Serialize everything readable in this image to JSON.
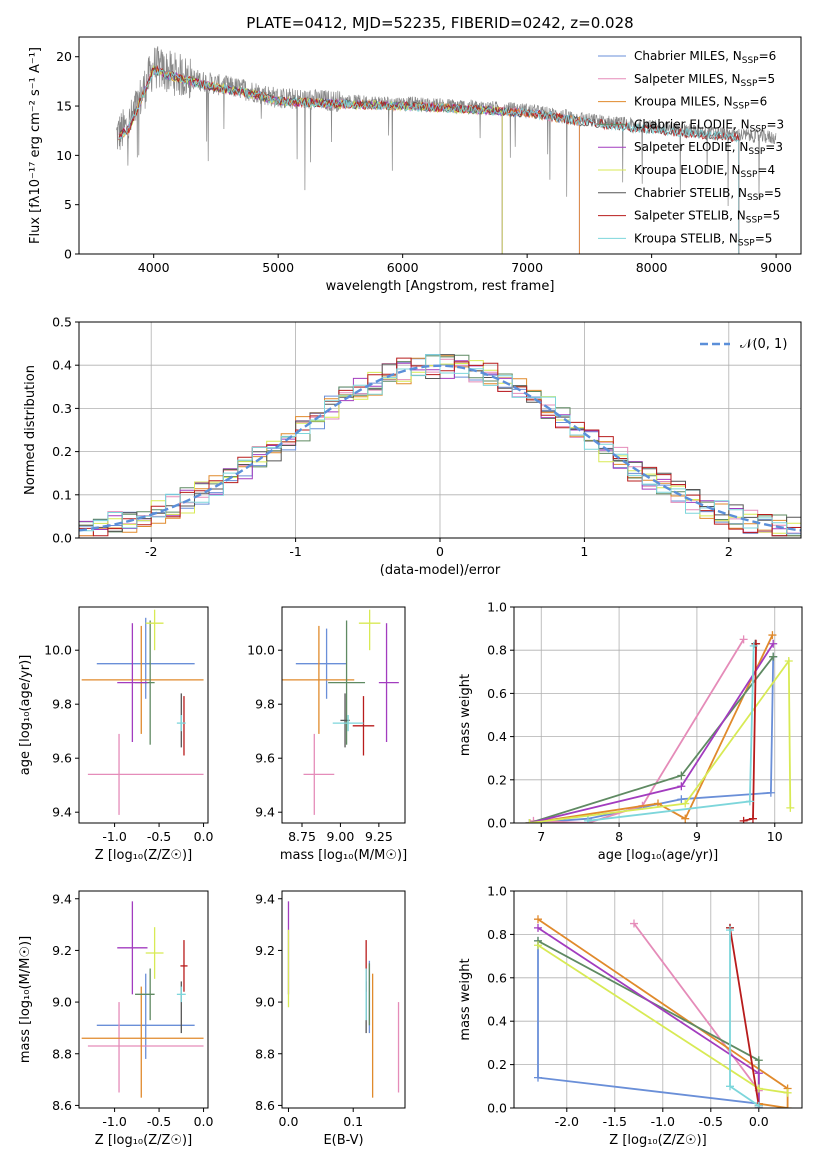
{
  "figure": {
    "title": "PLATE=0412, MJD=52235, FIBERID=0242, z=0.028"
  },
  "chart_data": [
    {
      "type": "line",
      "id": "spectrum",
      "title": "PLATE=0412, MJD=52235, FIBERID=0242, z=0.028",
      "xlabel": "wavelength [Angstrom, rest frame]",
      "ylabel": "Flux [fλ10⁻¹⁷ erg cm⁻² s⁻¹ A⁻¹]",
      "xlim": [
        3400,
        9200
      ],
      "ylim": [
        0,
        22
      ],
      "xticks": [
        4000,
        5000,
        6000,
        7000,
        8000,
        9000
      ],
      "yticks": [
        0,
        5,
        10,
        15,
        20
      ],
      "legend_position": "top-right",
      "data_trend": {
        "x": [
          3700,
          3800,
          3900,
          4000,
          4100,
          4300,
          4500,
          4800,
          5000,
          5500,
          6000,
          6500,
          7000,
          7500,
          8000,
          8500,
          9000
        ],
        "y": [
          12,
          13,
          16,
          19,
          18.5,
          17.8,
          17.2,
          16.5,
          15.8,
          15.5,
          15.3,
          15.0,
          14.6,
          13.6,
          12.9,
          12.3,
          11.8
        ]
      },
      "series": [
        {
          "name": "Chabrier MILES, N_SSP=6",
          "label_main": "Chabrier MILES, N",
          "label_sub": "SSP",
          "label_tail": "=6",
          "color": "#6a8fd8",
          "xmax": 7420
        },
        {
          "name": "Salpeter MILES, N_SSP=5",
          "label_main": "Salpeter MILES, N",
          "label_sub": "SSP",
          "label_tail": "=5",
          "color": "#e58cb9",
          "xmax": 7420
        },
        {
          "name": "Kroupa MILES, N_SSP=6",
          "label_main": "Kroupa MILES, N",
          "label_sub": "SSP",
          "label_tail": "=6",
          "color": "#e08a2c",
          "xmax": 7420
        },
        {
          "name": "Chabrier ELODIE, N_SSP=3",
          "label_main": "Chabrier ELODIE, N",
          "label_sub": "SSP",
          "label_tail": "=3",
          "color": "#5f8a62",
          "xmax": 6800
        },
        {
          "name": "Salpeter ELODIE, N_SSP=3",
          "label_main": "Salpeter ELODIE, N",
          "label_sub": "SSP",
          "label_tail": "=3",
          "color": "#a23cbf",
          "xmax": 6800
        },
        {
          "name": "Kroupa ELODIE, N_SSP=4",
          "label_main": "Kroupa ELODIE, N",
          "label_sub": "SSP",
          "label_tail": "=4",
          "color": "#d8ea55",
          "xmax": 6800
        },
        {
          "name": "Chabrier STELIB, N_SSP=5",
          "label_main": "Chabrier STELIB, N",
          "label_sub": "SSP",
          "label_tail": "=5",
          "color": "#555555",
          "xmax": 8700
        },
        {
          "name": "Salpeter STELIB, N_SSP=5",
          "label_main": "Salpeter STELIB, N",
          "label_sub": "SSP",
          "label_tail": "=5",
          "color": "#b81c1c",
          "xmax": 8700
        },
        {
          "name": "Kroupa STELIB, N_SSP=5",
          "label_main": "Kroupa STELIB, N",
          "label_sub": "SSP",
          "label_tail": "=5",
          "color": "#7dd6db",
          "xmax": 8700
        }
      ],
      "data_line": {
        "color": "#888888"
      }
    },
    {
      "type": "line",
      "id": "residuals",
      "xlabel": "(data-model)/error",
      "ylabel": "Normed distribution",
      "xlim": [
        -2.5,
        2.5
      ],
      "ylim": [
        0,
        0.5
      ],
      "xticks": [
        -2,
        -1,
        0,
        1,
        2
      ],
      "yticks": [
        0.0,
        0.1,
        0.2,
        0.3,
        0.4,
        0.5
      ],
      "grid": true,
      "legend_position": "top-right",
      "legend_label": "𝒩(0, 1)",
      "gaussian": {
        "mean": 0,
        "sigma": 1,
        "color": "#5b8fd9"
      },
      "histograms": {
        "bin_width": 0.1,
        "x_start": -2.5,
        "n_bins": 50
      }
    },
    {
      "type": "scatter",
      "id": "z-age",
      "xlabel": "Z [log₁₀(Z/Z☉)]",
      "ylabel": "age  [log₁₀(age/yr)]",
      "xlim": [
        -1.4,
        0.05
      ],
      "ylim": [
        9.36,
        10.16
      ],
      "xticks": [
        -1.0,
        -0.5,
        0.0
      ],
      "yticks": [
        9.4,
        9.6,
        9.8,
        10.0
      ]
    },
    {
      "type": "scatter",
      "id": "mass-age",
      "xlabel": "mass [log₁₀(M/M☉)]",
      "xlim": [
        8.62,
        9.42
      ],
      "ylim": [
        9.36,
        10.16
      ],
      "xticks": [
        8.75,
        9.0,
        9.25
      ],
      "yticks": [
        9.4,
        9.6,
        9.8,
        10.0
      ]
    },
    {
      "type": "line",
      "id": "age-weight",
      "xlabel": "age  [log₁₀(age/yr)]",
      "ylabel": "mass weight",
      "xlim": [
        6.65,
        10.35
      ],
      "ylim": [
        0,
        1.0
      ],
      "xticks": [
        7,
        8,
        9,
        10
      ],
      "yticks": [
        0.0,
        0.2,
        0.4,
        0.6,
        0.8,
        1.0
      ],
      "grid": true
    },
    {
      "type": "scatter",
      "id": "z-mass",
      "xlabel": "Z [log₁₀(Z/Z☉)]",
      "ylabel": "mass [log₁₀(M/M☉)]",
      "xlim": [
        -1.4,
        0.05
      ],
      "ylim": [
        8.59,
        9.43
      ],
      "xticks": [
        -1.0,
        -0.5,
        0.0
      ],
      "yticks": [
        8.6,
        8.8,
        9.0,
        9.2,
        9.4
      ]
    },
    {
      "type": "scatter",
      "id": "ebv-mass",
      "xlabel": "E(B-V)",
      "xlim": [
        -0.01,
        0.18
      ],
      "ylim": [
        8.59,
        9.43
      ],
      "xticks": [
        0.0,
        0.1
      ],
      "yticks": [
        8.6,
        8.8,
        9.0,
        9.2,
        9.4
      ]
    },
    {
      "type": "line",
      "id": "z-weight",
      "xlabel": "Z [log₁₀(Z/Z☉)]",
      "ylabel": "mass weight",
      "xlim": [
        -2.55,
        0.45
      ],
      "ylim": [
        0,
        1.0
      ],
      "xticks": [
        -2.0,
        -1.5,
        -1.0,
        -0.5,
        0.0
      ],
      "yticks": [
        0.0,
        0.2,
        0.4,
        0.6,
        0.8,
        1.0
      ],
      "grid": true
    }
  ],
  "models": [
    {
      "name": "Chabrier MILES",
      "color": "#6a8fd8",
      "za": {
        "z": -0.65,
        "zerr": [
          0.55,
          0.55
        ],
        "age": 9.95,
        "ageerr": [
          0.13,
          0.17
        ]
      },
      "ma": {
        "m": 8.91,
        "merr": [
          0.2,
          0.13
        ],
        "age": 9.95,
        "ageerr": [
          0.13,
          0.13
        ]
      },
      "zm": {
        "z": -0.65,
        "zerr": [
          0.55,
          0.55
        ],
        "m": 8.91,
        "merr": [
          0.13,
          0.2
        ]
      },
      "em": {
        "e": 0.125,
        "eerr": [
          0,
          0
        ],
        "m": 9.02,
        "merr": [
          0.14,
          0.14
        ]
      },
      "aw": {
        "age": [
          6.85,
          7.6,
          8.8,
          9.95,
          9.98
        ],
        "w": [
          0.0,
          0.02,
          0.11,
          0.14,
          0.77
        ]
      },
      "zw": {
        "z": [
          -2.3,
          -2.3,
          0.0,
          0.0
        ],
        "w": [
          0.77,
          0.14,
          0.02,
          0.0
        ]
      }
    },
    {
      "name": "Salpeter MILES",
      "color": "#e58cb9",
      "za": {
        "z": -0.95,
        "zerr": [
          0.35,
          0.95
        ],
        "age": 9.54,
        "ageerr": [
          0.15,
          0.15
        ]
      },
      "ma": {
        "m": 8.83,
        "merr": [
          0.07,
          0.13
        ],
        "age": 9.54,
        "ageerr": [
          0.15,
          0.15
        ]
      },
      "zm": {
        "z": -0.95,
        "zerr": [
          0.35,
          0.95
        ],
        "m": 8.83,
        "merr": [
          0.18,
          0.17
        ]
      },
      "em": {
        "e": 0.17,
        "eerr": [
          0,
          0
        ],
        "m": 8.83,
        "merr": [
          0.18,
          0.17
        ]
      },
      "aw": {
        "age": [
          6.9,
          7.6,
          8.3,
          9.6
        ],
        "w": [
          0.01,
          0.0,
          0.08,
          0.85
        ]
      },
      "zw": {
        "z": [
          -1.3,
          0.0,
          0.0,
          0.0
        ],
        "w": [
          0.85,
          0.08,
          0.02,
          0.01
        ]
      }
    },
    {
      "name": "Kroupa MILES",
      "color": "#e08a2c",
      "za": {
        "z": -0.7,
        "zerr": [
          0.67,
          0.7
        ],
        "age": 9.89,
        "ageerr": [
          0.2,
          0.2
        ]
      },
      "ma": {
        "m": 8.86,
        "merr": [
          0.25,
          0.23
        ],
        "age": 9.89,
        "ageerr": [
          0.2,
          0.2
        ]
      },
      "zm": {
        "z": -0.7,
        "zerr": [
          0.67,
          0.7
        ],
        "m": 8.86,
        "merr": [
          0.23,
          0.2
        ]
      },
      "em": {
        "e": 0.13,
        "eerr": [
          0,
          0
        ],
        "m": 8.86,
        "merr": [
          0.23,
          0.25
        ]
      },
      "aw": {
        "age": [
          6.85,
          8.5,
          8.85,
          9.97
        ],
        "w": [
          0.0,
          0.09,
          0.02,
          0.87
        ]
      },
      "zw": {
        "z": [
          -2.3,
          0.3,
          0.3,
          0.0
        ],
        "w": [
          0.87,
          0.09,
          0.0,
          0.02
        ]
      }
    },
    {
      "name": "Chabrier ELODIE",
      "color": "#5f8a62",
      "za": {
        "z": -0.6,
        "zerr": [
          0.17,
          0.05
        ],
        "age": 9.88,
        "ageerr": [
          0.23,
          0.23
        ]
      },
      "ma": {
        "m": 9.04,
        "merr": [
          0.12,
          0.12
        ],
        "age": 9.88,
        "ageerr": [
          0.23,
          0.23
        ]
      },
      "zm": {
        "z": -0.6,
        "zerr": [
          0.17,
          0.05
        ],
        "m": 9.03,
        "merr": [
          0.1,
          0.1
        ]
      },
      "em": {
        "e": 0.125,
        "eerr": [
          0,
          0
        ],
        "m": 9.03,
        "merr": [
          0.12,
          0.12
        ]
      },
      "aw": {
        "age": [
          6.85,
          8.8,
          9.98
        ],
        "w": [
          0.0,
          0.22,
          0.77
        ]
      },
      "zw": {
        "z": [
          -2.3,
          0.0,
          0.0
        ],
        "w": [
          0.77,
          0.22,
          0.0
        ]
      }
    },
    {
      "name": "Salpeter ELODIE",
      "color": "#a23cbf",
      "za": {
        "z": -0.8,
        "zerr": [
          0.17,
          0.17
        ],
        "age": 9.88,
        "ageerr": [
          0.22,
          0.22
        ]
      },
      "ma": {
        "m": 9.3,
        "merr": [
          0.05,
          0.08
        ],
        "age": 9.88,
        "ageerr": [
          0.22,
          0.22
        ]
      },
      "zm": {
        "z": -0.8,
        "zerr": [
          0.17,
          0.17
        ],
        "m": 9.21,
        "merr": [
          0.18,
          0.18
        ]
      },
      "em": {
        "e": 0.0,
        "eerr": [
          0,
          0
        ],
        "m": 9.21,
        "merr": [
          0.18,
          0.18
        ]
      },
      "aw": {
        "age": [
          6.85,
          8.8,
          9.98
        ],
        "w": [
          0.0,
          0.17,
          0.83
        ]
      },
      "zw": {
        "z": [
          -2.3,
          0.0,
          0.0
        ],
        "w": [
          0.83,
          0.16,
          0.0
        ]
      }
    },
    {
      "name": "Kroupa ELODIE",
      "color": "#d8ea55",
      "za": {
        "z": -0.55,
        "zerr": [
          0.1,
          0.1
        ],
        "age": 10.1,
        "ageerr": [
          0.1,
          0.05
        ]
      },
      "ma": {
        "m": 9.19,
        "merr": [
          0.07,
          0.07
        ],
        "age": 10.1,
        "ageerr": [
          0.1,
          0.05
        ]
      },
      "zm": {
        "z": -0.55,
        "zerr": [
          0.1,
          0.1
        ],
        "m": 9.19,
        "merr": [
          0.1,
          0.1
        ]
      },
      "em": {
        "e": 0.0,
        "eerr": [
          0,
          0
        ],
        "m": 9.13,
        "merr": [
          0.15,
          0.15
        ]
      },
      "aw": {
        "age": [
          6.85,
          8.85,
          10.18,
          10.2
        ],
        "w": [
          0.0,
          0.09,
          0.75,
          0.07
        ]
      },
      "zw": {
        "z": [
          -2.3,
          0.0,
          0.3
        ],
        "w": [
          0.75,
          0.09,
          0.07
        ]
      }
    },
    {
      "name": "Chabrier STELIB",
      "color": "#555555",
      "za": {
        "z": -0.25,
        "zerr": [
          0,
          0
        ],
        "age": 9.74,
        "ageerr": [
          0.1,
          0.1
        ]
      },
      "ma": {
        "m": 9.03,
        "merr": [
          0.03,
          0.03
        ],
        "age": 9.74,
        "ageerr": [
          0.1,
          0.1
        ]
      },
      "zm": {
        "z": -0.25,
        "zerr": [
          0,
          0
        ],
        "m": 8.98,
        "merr": [
          0.1,
          0.1
        ]
      },
      "em": {
        "e": 0.12,
        "eerr": [
          0,
          0
        ],
        "m": 8.98,
        "merr": [
          0.1,
          0.1
        ]
      },
      "aw": {
        "age": [
          9.75
        ],
        "w": [
          0.83
        ]
      },
      "zw": {
        "z": [
          -0.3
        ],
        "w": [
          0.83
        ]
      }
    },
    {
      "name": "Salpeter STELIB",
      "color": "#b81c1c",
      "za": {
        "z": -0.22,
        "zerr": [
          0,
          0
        ],
        "age": 9.72,
        "ageerr": [
          0.11,
          0.11
        ]
      },
      "ma": {
        "m": 9.15,
        "merr": [
          0.07,
          0.07
        ],
        "age": 9.72,
        "ageerr": [
          0.11,
          0.11
        ]
      },
      "zm": {
        "z": -0.22,
        "zerr": [
          0.04,
          0.04
        ],
        "m": 9.14,
        "merr": [
          0.1,
          0.1
        ]
      },
      "em": {
        "e": 0.12,
        "eerr": [
          0,
          0
        ],
        "m": 9.14,
        "merr": [
          0.1,
          0.1
        ]
      },
      "aw": {
        "age": [
          9.6,
          9.72,
          9.76
        ],
        "w": [
          0.01,
          0.02,
          0.83
        ]
      },
      "zw": {
        "z": [
          -0.3,
          0.0
        ],
        "w": [
          0.83,
          0.01
        ]
      }
    },
    {
      "name": "Kroupa STELIB",
      "color": "#7dd6db",
      "za": {
        "z": -0.25,
        "zerr": [
          0.05,
          0.05
        ],
        "age": 9.73,
        "ageerr": [
          0.03,
          0.03
        ]
      },
      "ma": {
        "m": 9.05,
        "merr": [
          0.1,
          0.1
        ],
        "age": 9.73,
        "ageerr": [
          0.03,
          0.03
        ]
      },
      "zm": {
        "z": -0.25,
        "zerr": [
          0.05,
          0.05
        ],
        "m": 9.03,
        "merr": [
          0.03,
          0.03
        ]
      },
      "em": {
        "e": 0.12,
        "eerr": [
          0,
          0
        ],
        "m": 9.03,
        "merr": [
          0.1,
          0.1
        ]
      },
      "aw": {
        "age": [
          7.6,
          9.68,
          9.73
        ],
        "w": [
          0.01,
          0.1,
          0.82
        ]
      },
      "zw": {
        "z": [
          -0.3,
          -0.3,
          0.0
        ],
        "w": [
          0.82,
          0.1,
          0.01
        ]
      }
    }
  ]
}
